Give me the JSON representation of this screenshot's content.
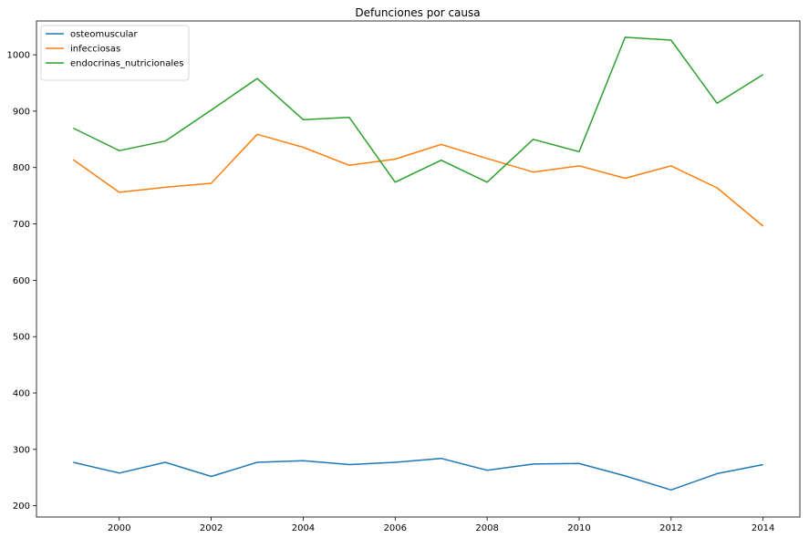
{
  "chart_data": {
    "type": "line",
    "title": "Defunciones por causa",
    "xlabel": "",
    "ylabel": "",
    "xlim": [
      1998.2,
      2014.8
    ],
    "ylim": [
      180,
      1060
    ],
    "x": [
      1999,
      2000,
      2001,
      2002,
      2003,
      2004,
      2005,
      2006,
      2007,
      2008,
      2009,
      2010,
      2011,
      2012,
      2013,
      2014
    ],
    "xticks": [
      2000,
      2002,
      2004,
      2006,
      2008,
      2010,
      2012,
      2014
    ],
    "yticks": [
      200,
      300,
      400,
      500,
      600,
      700,
      800,
      900,
      1000
    ],
    "legend": "top-left",
    "grid": false,
    "series": [
      {
        "name": "osteomuscular",
        "color": "#1f77b4",
        "values": [
          277,
          258,
          277,
          252,
          277,
          280,
          273,
          277,
          284,
          263,
          274,
          275,
          253,
          228,
          257,
          273
        ]
      },
      {
        "name": "infecciosas",
        "color": "#ff7f0e",
        "values": [
          814,
          756,
          765,
          772,
          859,
          836,
          804,
          815,
          841,
          816,
          792,
          803,
          781,
          803,
          764,
          696
        ]
      },
      {
        "name": "endocrinas_nutricionales",
        "color": "#2ca02c",
        "values": [
          870,
          830,
          847,
          902,
          958,
          885,
          889,
          774,
          813,
          774,
          850,
          828,
          1031,
          1026,
          914,
          965
        ]
      }
    ]
  }
}
